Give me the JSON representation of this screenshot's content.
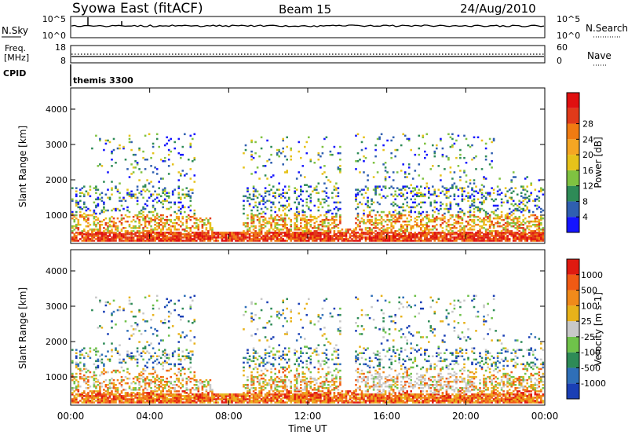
{
  "header": {
    "station": "Syowa East (fitACF)",
    "beam": "Beam 15",
    "date": "24/Aug/2010"
  },
  "noise_panel": {
    "left_label": "N.Sky",
    "right_label": "N.Search",
    "left_ticks": [
      "10^5",
      "10^0"
    ],
    "right_ticks": [
      "10^5",
      "10^0"
    ]
  },
  "freq_panel": {
    "left_label_1": "Freq.",
    "left_label_2": "[MHz]",
    "right_label": "Nave",
    "left_ticks": [
      "18",
      "8"
    ],
    "right_ticks": [
      "60",
      "0"
    ]
  },
  "cpid_panel": {
    "label": "CPID",
    "program": "themis 3300"
  },
  "chart_data": [
    {
      "type": "heatmap",
      "name": "power",
      "ylabel": "Slant Range [km]",
      "yticks": [
        "1000",
        "2000",
        "3000",
        "4000"
      ],
      "ylim": [
        200,
        4600
      ],
      "colorbar_label": "Power [dB]",
      "colorbar_ticks": [
        "4",
        "8",
        "12",
        "16",
        "20",
        "24",
        "28"
      ],
      "colorbar_colors": [
        "#1414ff",
        "#2f5fb0",
        "#2e8b57",
        "#7fc241",
        "#e6c21a",
        "#f5a623",
        "#f07b12",
        "#e03a1a",
        "#e01010"
      ],
      "vlim": [
        0,
        30
      ]
    },
    {
      "type": "heatmap",
      "name": "velocity",
      "ylabel": "Slant Range [km]",
      "yticks": [
        "1000",
        "2000",
        "3000",
        "4000"
      ],
      "ylim": [
        200,
        4600
      ],
      "colorbar_label": "Velocity [m s-1]",
      "colorbar_ticks": [
        "1000",
        "500",
        "100",
        "25",
        "-25",
        "-100",
        "-500",
        "-1000"
      ],
      "colorbar_colors": [
        "#1a3fb5",
        "#2f6fb8",
        "#2e8b57",
        "#6fc24a",
        "#c8c8c8",
        "#e8b21a",
        "#f08a1a",
        "#f05a14",
        "#e01a10"
      ],
      "vlim": [
        -1200,
        1200
      ]
    }
  ],
  "time_axis": {
    "label": "Time UT",
    "ticks": [
      "00:00",
      "04:00",
      "08:00",
      "12:00",
      "16:00",
      "20:00",
      "00:00"
    ]
  }
}
